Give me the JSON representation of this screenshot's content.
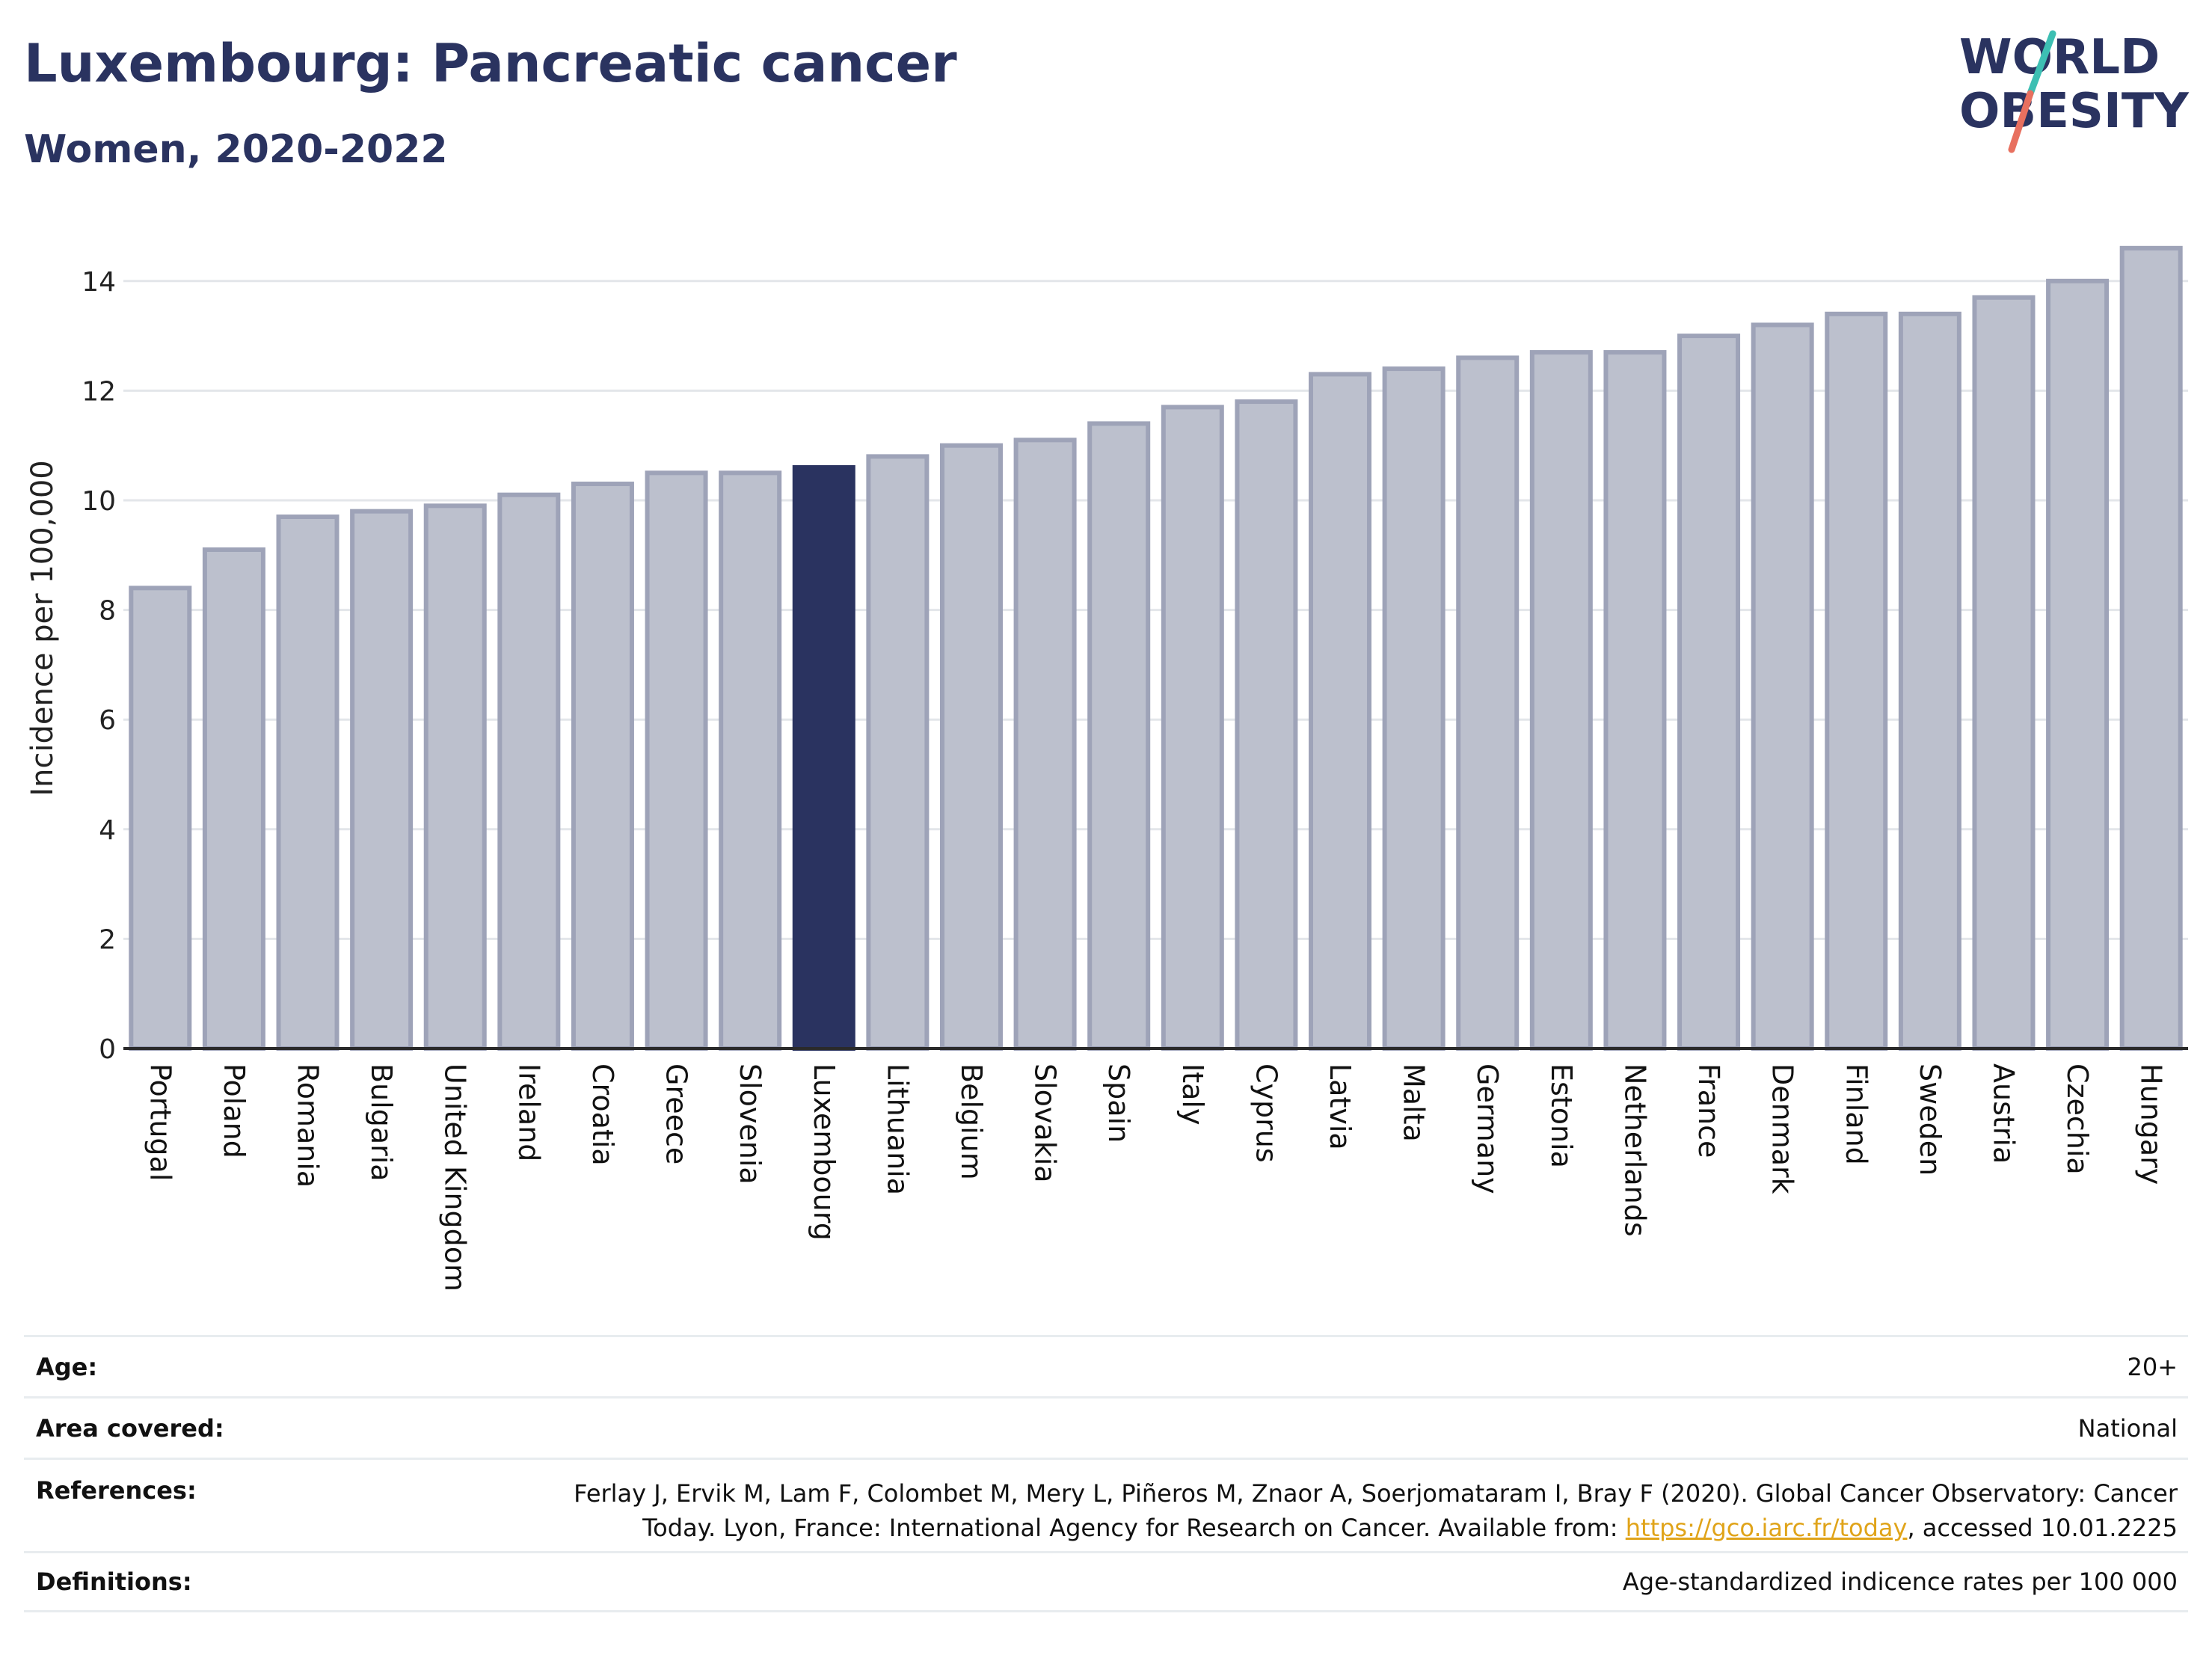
{
  "header": {
    "title": "Luxembourg: Pancreatic cancer",
    "subtitle": "Women, 2020-2022"
  },
  "logo": {
    "line1": "WORLD",
    "line2": "OBESITY",
    "colors": {
      "text": "#2a3360",
      "teal": "#3dbfb3",
      "coral": "#e8705f"
    }
  },
  "chart_data": {
    "type": "bar",
    "ylabel": "Incidence per 100,000",
    "xlabel": "",
    "ylim": [
      0,
      14.8
    ],
    "yticks": [
      0,
      2,
      4,
      6,
      8,
      10,
      12,
      14
    ],
    "grid": true,
    "highlight": "Luxembourg",
    "colors": {
      "bar": "#bcc0cd",
      "bar_edge": "#9ea3b8",
      "highlight": "#2a3360",
      "grid": "#e3e6ea",
      "axis": "#2a2a2a"
    },
    "categories": [
      "Portugal",
      "Poland",
      "Romania",
      "Bulgaria",
      "United Kingdom",
      "Ireland",
      "Croatia",
      "Greece",
      "Slovenia",
      "Luxembourg",
      "Lithuania",
      "Belgium",
      "Slovakia",
      "Spain",
      "Italy",
      "Cyprus",
      "Latvia",
      "Malta",
      "Germany",
      "Estonia",
      "Netherlands",
      "France",
      "Denmark",
      "Finland",
      "Sweden",
      "Austria",
      "Czechia",
      "Hungary"
    ],
    "values": [
      8.4,
      9.1,
      9.7,
      9.8,
      9.9,
      10.1,
      10.3,
      10.5,
      10.5,
      10.6,
      10.8,
      11.0,
      11.1,
      11.4,
      11.7,
      11.8,
      12.3,
      12.4,
      12.6,
      12.7,
      12.7,
      13.0,
      13.2,
      13.4,
      13.4,
      13.7,
      14.0,
      14.6
    ]
  },
  "info": {
    "age_label": "Age:",
    "age_value": "20+",
    "area_label": "Area covered:",
    "area_value": "National",
    "references_label": "References:",
    "references_line1": "Ferlay J, Ervik M, Lam F, Colombet M, Mery L, Piñeros M, Znaor A, Soerjomataram I, Bray F (2020). Global Cancer Observatory: Cancer",
    "references_line2_pre": "Today. Lyon, France: International Agency for Research on Cancer. Available from: ",
    "references_link": "https://gco.iarc.fr/today",
    "references_line2_post": ", accessed 10.01.2225",
    "definitions_label": "Definitions:",
    "definitions_value": "Age-standardized indicence rates per 100 000"
  }
}
